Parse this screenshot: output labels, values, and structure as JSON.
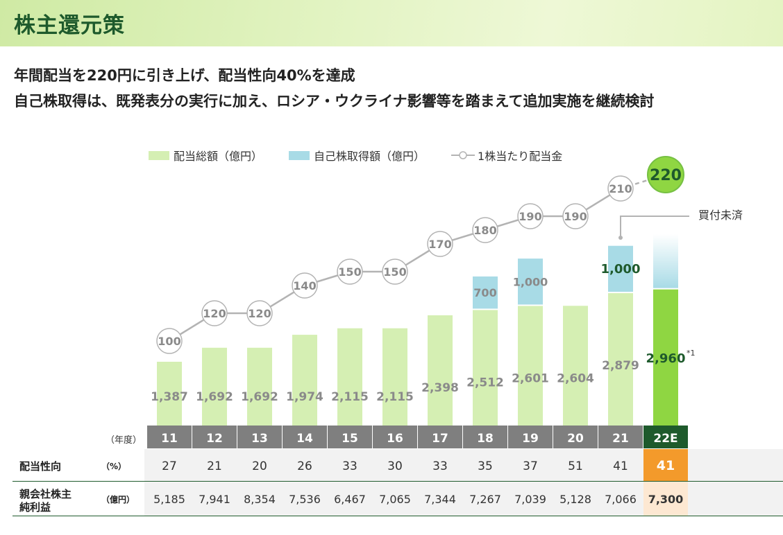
{
  "page": {
    "title": "株主還元策",
    "subtitle1": "年間配当を220円に引き上げ、配当性向40%を達成",
    "subtitle2": "自己株取得は、既発表分の実行に加え、ロシア・ウクライナ影響等を踏まえて追加実施を継続検討"
  },
  "legend": {
    "dividend": "配当総額（億円）",
    "buyback": "自己株取得額（億円）",
    "dps": "1株当たり配当金"
  },
  "annotations": {
    "unexecuted": "買付未済",
    "footnote": "*1"
  },
  "table": {
    "year_label": "（年度）",
    "payout_label": "配当性向",
    "payout_unit": "（%）",
    "profit_label_1": "親会社株主",
    "profit_label_2": "純利益",
    "profit_unit": "（億円）"
  },
  "colors": {
    "dividend": "#d5efb3",
    "dividend_forecast": "#8fd642",
    "buyback": "#a8dbe6",
    "header_year": "#7f7f7f",
    "header_forecast": "#1e5a2c",
    "payout_forecast": "#f39a2b",
    "profit_forecast": "#fde8d2",
    "line": "#b3b3b3"
  },
  "chart_data": {
    "type": "bar",
    "categories": [
      "11",
      "12",
      "13",
      "14",
      "15",
      "16",
      "17",
      "18",
      "19",
      "20",
      "21",
      "22E"
    ],
    "series": [
      {
        "name": "配当総額（億円）",
        "values": [
          1387,
          1692,
          1692,
          1974,
          2115,
          2115,
          2398,
          2512,
          2601,
          2604,
          2879,
          2960
        ],
        "labels": [
          "1,387",
          "1,692",
          "1,692",
          "1,974",
          "2,115",
          "2,115",
          "2,398",
          "2,512",
          "2,601",
          "2,604",
          "2,879",
          "2,960"
        ]
      },
      {
        "name": "自己株取得額（億円）",
        "values": [
          null,
          null,
          null,
          null,
          null,
          null,
          null,
          700,
          1000,
          null,
          1000,
          null
        ],
        "labels": [
          "",
          "",
          "",
          "",
          "",
          "",
          "",
          "700",
          "1,000",
          "",
          "1,000",
          ""
        ]
      },
      {
        "name": "1株当たり配当金",
        "values": [
          100,
          120,
          120,
          140,
          150,
          150,
          170,
          180,
          190,
          190,
          210,
          220
        ]
      }
    ],
    "payout_ratio": [
      "27",
      "21",
      "20",
      "26",
      "33",
      "30",
      "33",
      "35",
      "37",
      "51",
      "41",
      "41"
    ],
    "net_profit": [
      "5,185",
      "7,941",
      "8,354",
      "7,536",
      "6,467",
      "7,065",
      "7,344",
      "7,267",
      "7,039",
      "5,128",
      "7,066",
      "7,300"
    ]
  }
}
